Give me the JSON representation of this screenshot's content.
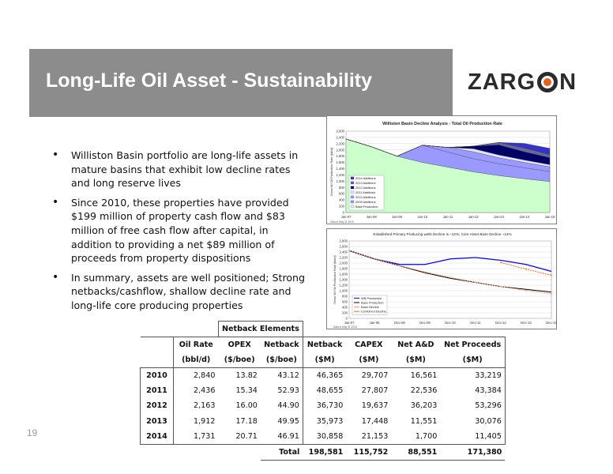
{
  "slide": {
    "title": "Long-Life Oil Asset - Sustainability",
    "logo_text_left": "ZARG",
    "logo_text_right": "N",
    "page_number": "19",
    "colors": {
      "title_band": "#8c8c8c",
      "logo_accent": "#e8601c"
    }
  },
  "bullets": [
    "Williston Basin portfolio are long-life assets in mature basins that exhibit low decline rates and long reserve lives",
    "Since 2010, these properties have provided $199 million of property cash flow and $83 million of free cash flow after capital, in addition to providing a net $89 million of proceeds from property dispositions",
    "In summary, assets are well positioned; Strong netbacks/cashflow, shallow decline rate and long-life core producing properties"
  ],
  "chart_data": [
    {
      "type": "area",
      "title": "Williston Basin Decline Analysis - Total Oil Production Rate",
      "ylabel": "Gross WI Oil Production Rate (bbl/d)",
      "ylim": [
        0,
        2600
      ],
      "yticks": [
        "0",
        "200",
        "400",
        "600",
        "800",
        "1,000",
        "1,200",
        "1,400",
        "1,600",
        "1,800",
        "2,000",
        "2,200",
        "2,400",
        "2,600"
      ],
      "x": [
        "Jan-07",
        "Jan-08",
        "Jan-09",
        "Jan-10",
        "Jan-11",
        "Jan-12",
        "Jan-13",
        "Jan-14",
        "Jan-15"
      ],
      "legend_position": "left-middle",
      "source_note": "Data to May 31 2015",
      "series": [
        {
          "name": "Base Production",
          "color": "#ccffcc",
          "values": [
            2350,
            2100,
            1800,
            1600,
            1450,
            1300,
            1180,
            1080,
            990
          ]
        },
        {
          "name": "2009 Additions",
          "color": "#9999ff",
          "values": [
            0,
            0,
            0,
            550,
            480,
            420,
            380,
            350,
            320
          ]
        },
        {
          "name": "2010 Additions",
          "color": "#9999ff",
          "values": [
            0,
            0,
            0,
            0,
            150,
            220,
            190,
            170,
            150
          ]
        },
        {
          "name": "2011 Additions",
          "color": "#e0e0ff",
          "values": [
            0,
            0,
            0,
            0,
            0,
            100,
            90,
            80,
            70
          ]
        },
        {
          "name": "2012 Additions",
          "color": "#000066",
          "values": [
            0,
            0,
            0,
            0,
            0,
            80,
            320,
            260,
            220
          ]
        },
        {
          "name": "2013 Additions",
          "color": "#666699",
          "values": [
            0,
            0,
            0,
            0,
            0,
            0,
            80,
            120,
            100
          ]
        },
        {
          "name": "2014 Additions",
          "color": "#3333cc",
          "values": [
            0,
            0,
            0,
            0,
            0,
            0,
            0,
            150,
            200
          ]
        }
      ]
    },
    {
      "type": "line",
      "title": "Established Primary Producing wells Decline is ~12%; Core Asset Base Decline ~14%",
      "ylabel": "Gross WI Oil Production Rate (bbl/d)",
      "ylim": [
        0,
        2800
      ],
      "yticks": [
        "0",
        "200",
        "400",
        "600",
        "800",
        "1,000",
        "1,200",
        "1,400",
        "1,600",
        "1,800",
        "2,000",
        "2,200",
        "2,400",
        "2,600",
        "2,800"
      ],
      "x": [
        "Jan-07",
        "Jan-08",
        "Dec-08",
        "Dec-09",
        "Dec-10",
        "Dec-11",
        "Dec-12",
        "Dec-13",
        "Dec-14"
      ],
      "legend_position": "bottom-left",
      "source_note": "Data to May 31 2015",
      "series": [
        {
          "name": "WB Production",
          "color": "#0000ff",
          "values": [
            2450,
            2150,
            1950,
            1950,
            2150,
            2200,
            2100,
            1950,
            1700
          ]
        },
        {
          "name": "Base Production",
          "color": "#000000",
          "values": [
            2450,
            2150,
            1900,
            1650,
            1450,
            1300,
            1150,
            1050,
            950
          ]
        },
        {
          "name": "Base Decline",
          "color": "#ff9966",
          "values": [
            2450,
            2160,
            1900,
            1680,
            1480,
            1300,
            1150,
            1010,
            890
          ]
        },
        {
          "name": "Combined Decline",
          "color": "#ff6600",
          "values": [
            null,
            null,
            null,
            null,
            null,
            null,
            2020,
            1780,
            1560
          ]
        }
      ]
    }
  ],
  "table": {
    "group_header": "Netback Elements",
    "columns": [
      "Oil Rate",
      "OPEX",
      "Netback",
      "Netback",
      "CAPEX",
      "Net A&D",
      "Net Proceeds"
    ],
    "units": [
      "(bbl/d)",
      "($/boe)",
      "($/boe)",
      "($M)",
      "($M)",
      "($M)",
      "($M)"
    ],
    "rows": [
      {
        "year": "2010",
        "values": [
          "2,840",
          "13.82",
          "43.12",
          "46,365",
          "29,707",
          "16,561",
          "33,219"
        ]
      },
      {
        "year": "2011",
        "values": [
          "2,436",
          "15.34",
          "52.93",
          "48,655",
          "27,807",
          "22,536",
          "43,384"
        ]
      },
      {
        "year": "2012",
        "values": [
          "2,163",
          "16.00",
          "44.90",
          "36,730",
          "19,637",
          "36,203",
          "53,296"
        ]
      },
      {
        "year": "2013",
        "values": [
          "1,912",
          "17.18",
          "49.95",
          "35,973",
          "17,448",
          "11,551",
          "30,076"
        ]
      },
      {
        "year": "2014",
        "values": [
          "1,731",
          "20.71",
          "46.91",
          "30,858",
          "21,153",
          "1,700",
          "11,405"
        ]
      }
    ],
    "total_label": "Total",
    "totals": [
      "198,581",
      "115,752",
      "88,551",
      "171,380"
    ]
  }
}
